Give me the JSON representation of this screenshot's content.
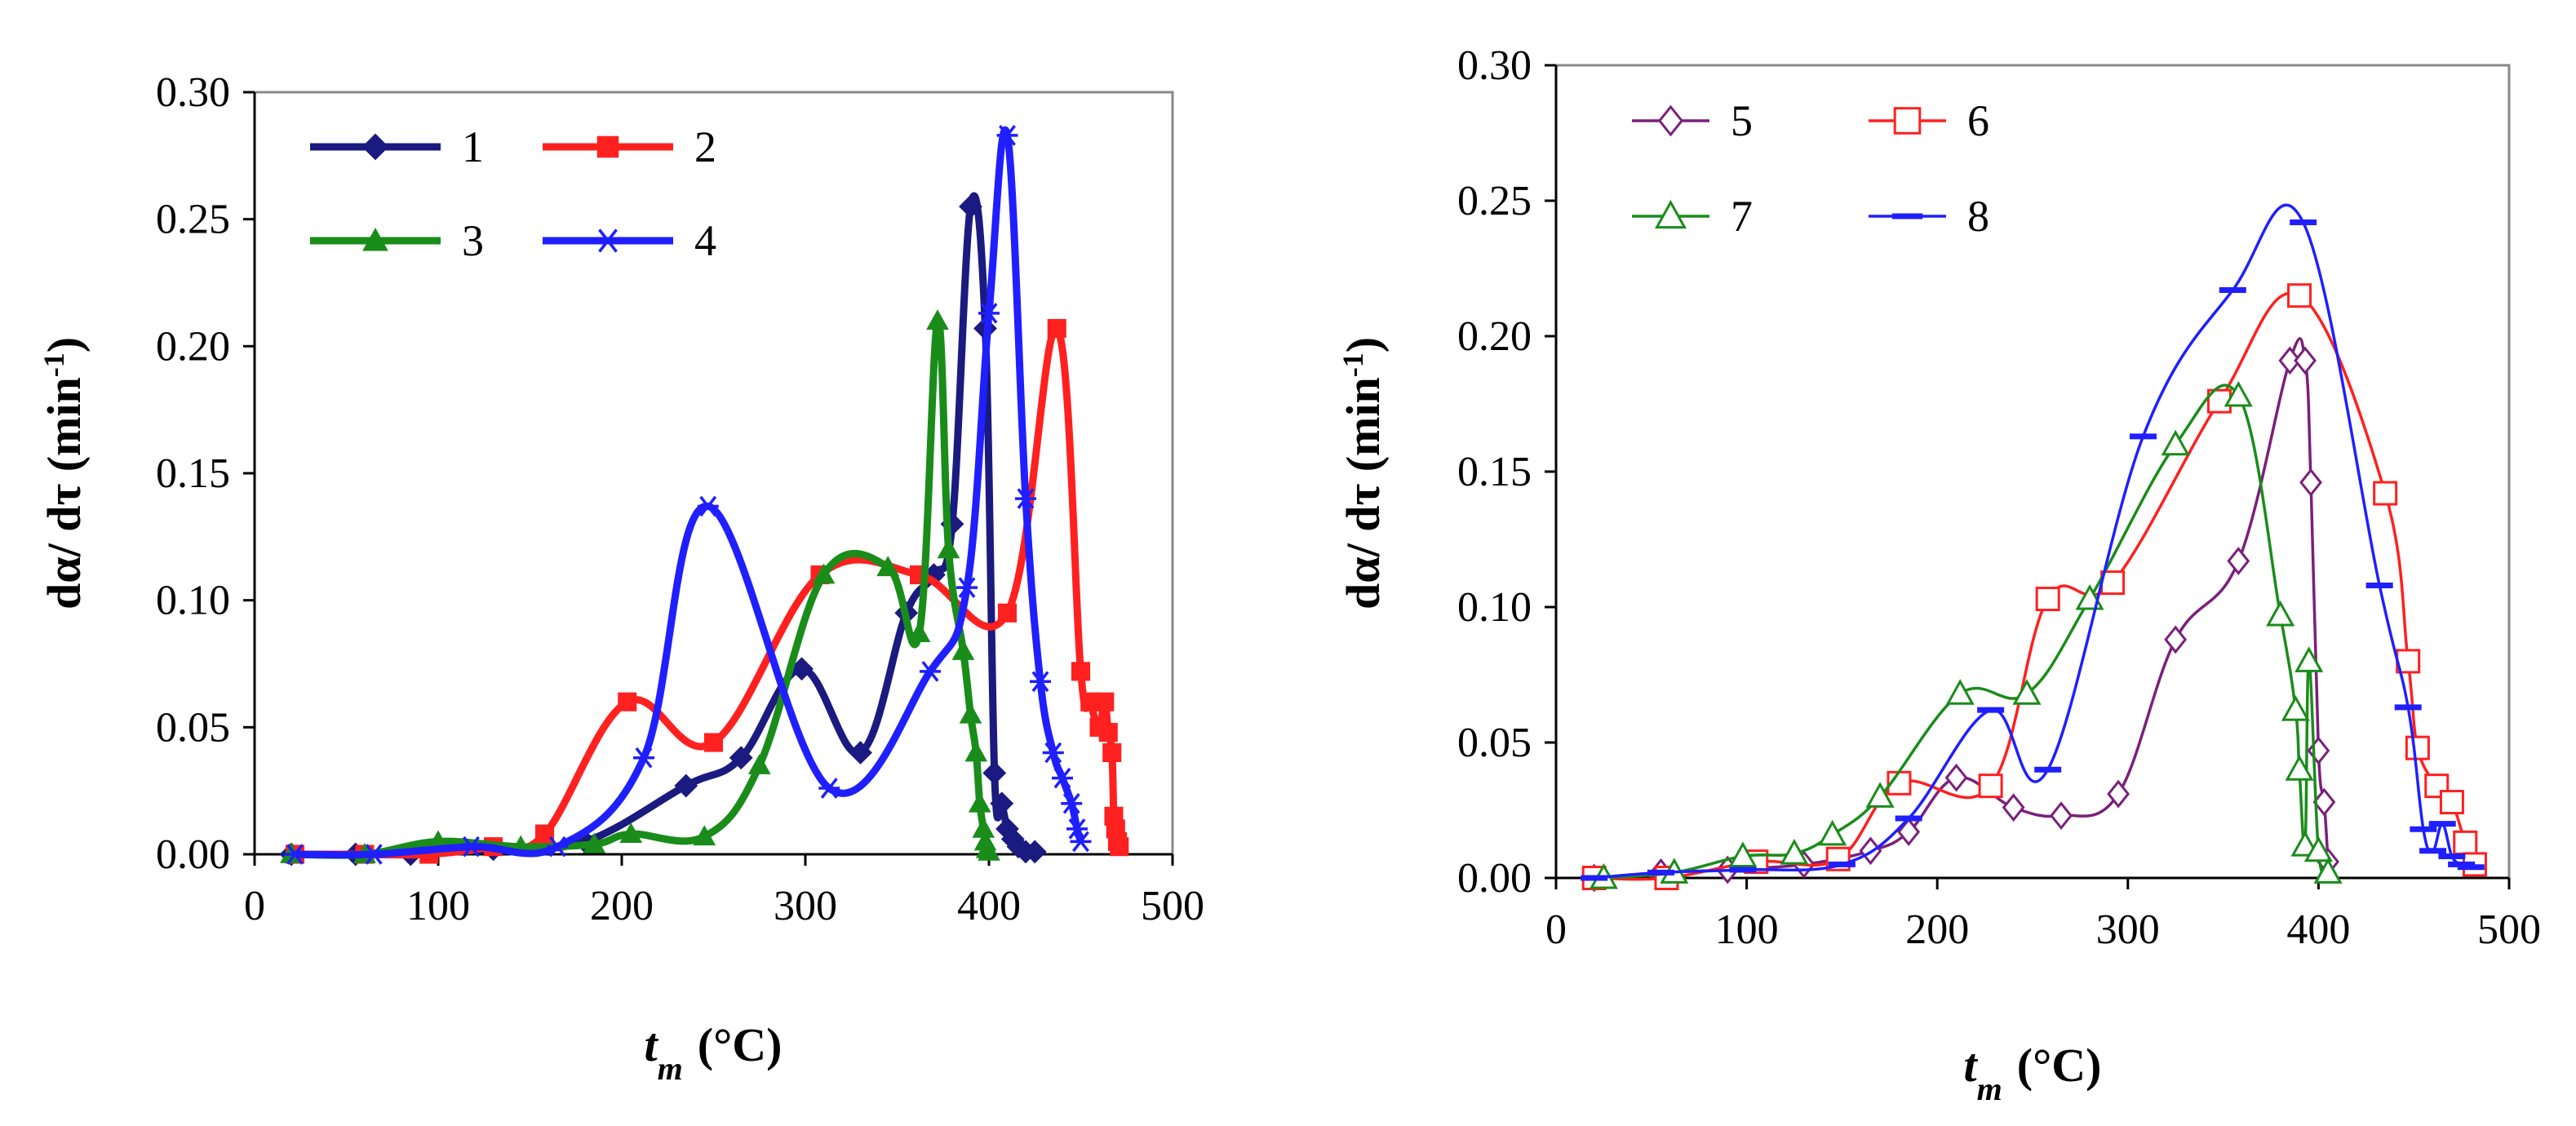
{
  "chart_data": [
    {
      "type": "line",
      "xlabel_main": "t",
      "xlabel_sub": "m",
      "xlabel_unit": "(°C)",
      "ylabel": "dα/ dτ (min",
      "ylabel_sup": "-1",
      "ylabel_close": ")",
      "xlim": [
        0,
        500
      ],
      "ylim": [
        0,
        0.3
      ],
      "xticks": [
        "0",
        "100",
        "200",
        "300",
        "400",
        "500"
      ],
      "yticks": [
        "0.00",
        "0.05",
        "0.10",
        "0.15",
        "0.20",
        "0.25",
        "0.30"
      ],
      "series": [
        {
          "name": "1",
          "color": "#1a1a80",
          "marker": "diamond-filled",
          "x": [
            20,
            55,
            85,
            130,
            180,
            235,
            265,
            298,
            330,
            355,
            370,
            380,
            390,
            398,
            403,
            407,
            410,
            413,
            416,
            420,
            425
          ],
          "y": [
            0,
            0,
            0,
            0.002,
            0.005,
            0.027,
            0.038,
            0.073,
            0.04,
            0.095,
            0.11,
            0.13,
            0.255,
            0.207,
            0.032,
            0.02,
            0.01,
            0.006,
            0.003,
            0.001,
            0.001
          ]
        },
        {
          "name": "2",
          "color": "#ff2020",
          "marker": "square-filled",
          "x": [
            22,
            60,
            95,
            130,
            158,
            203,
            250,
            308,
            362,
            410,
            437,
            450,
            455,
            460,
            463,
            465,
            467,
            468,
            469,
            470,
            471
          ],
          "y": [
            0,
            0,
            0,
            0.003,
            0.008,
            0.06,
            0.044,
            0.11,
            0.11,
            0.095,
            0.207,
            0.072,
            0.06,
            0.05,
            0.06,
            0.048,
            0.04,
            0.015,
            0.01,
            0.005,
            0.003
          ]
        },
        {
          "name": "3",
          "color": "#1a8c1a",
          "marker": "triangle-filled",
          "x": [
            20,
            60,
            100,
            145,
            185,
            205,
            245,
            275,
            310,
            345,
            362,
            372,
            378,
            386,
            390,
            393,
            395,
            397,
            398,
            399,
            400
          ],
          "y": [
            0,
            0,
            0.005,
            0.003,
            0.004,
            0.008,
            0.007,
            0.035,
            0.11,
            0.113,
            0.087,
            0.21,
            0.12,
            0.08,
            0.055,
            0.04,
            0.02,
            0.01,
            0.005,
            0.002,
            0.001
          ]
        },
        {
          "name": "4",
          "color": "#1f1fff",
          "marker": "asterisk",
          "x": [
            22,
            65,
            118,
            165,
            212,
            247,
            313,
            368,
            388,
            400,
            410,
            420,
            428,
            435,
            440,
            445,
            448,
            450
          ],
          "y": [
            0,
            0,
            0.003,
            0.003,
            0.038,
            0.137,
            0.026,
            0.072,
            0.105,
            0.213,
            0.283,
            0.14,
            0.068,
            0.04,
            0.03,
            0.02,
            0.01,
            0.005
          ]
        }
      ],
      "legend_position": "top-left"
    },
    {
      "type": "line",
      "xlabel_main": "t",
      "xlabel_sub": "m",
      "xlabel_unit": "(°C)",
      "ylabel": "dα/ dτ (min",
      "ylabel_sup": "-1",
      "ylabel_close": ")",
      "xlim": [
        0,
        500
      ],
      "ylim": [
        0,
        0.3
      ],
      "xticks": [
        "0",
        "100",
        "200",
        "300",
        "400",
        "500"
      ],
      "yticks": [
        "0.00",
        "0.05",
        "0.10",
        "0.15",
        "0.20",
        "0.25",
        "0.30"
      ],
      "series": [
        {
          "name": "5",
          "color": "#7b1f7b",
          "marker": "diamond-open",
          "x": [
            20,
            55,
            90,
            130,
            165,
            185,
            210,
            240,
            265,
            295,
            325,
            358,
            385,
            393,
            396,
            400,
            403,
            405
          ],
          "y": [
            0,
            0.002,
            0.003,
            0.005,
            0.01,
            0.017,
            0.037,
            0.026,
            0.023,
            0.031,
            0.088,
            0.117,
            0.191,
            0.191,
            0.146,
            0.047,
            0.028,
            0.006
          ]
        },
        {
          "name": "6",
          "color": "#ff2020",
          "marker": "square-open",
          "x": [
            20,
            58,
            105,
            148,
            180,
            228,
            258,
            292,
            348,
            390,
            435,
            447,
            452,
            462,
            470,
            477,
            482
          ],
          "y": [
            0,
            0,
            0.006,
            0.007,
            0.035,
            0.034,
            0.103,
            0.109,
            0.176,
            0.215,
            0.142,
            0.08,
            0.048,
            0.034,
            0.028,
            0.013,
            0.005
          ]
        },
        {
          "name": "7",
          "color": "#1a8c1a",
          "marker": "triangle-open",
          "x": [
            25,
            62,
            98,
            125,
            145,
            170,
            212,
            247,
            280,
            325,
            358,
            380,
            388,
            390,
            393,
            395,
            400,
            405
          ],
          "y": [
            0,
            0.002,
            0.008,
            0.009,
            0.016,
            0.03,
            0.068,
            0.068,
            0.103,
            0.16,
            0.178,
            0.097,
            0.062,
            0.04,
            0.012,
            0.08,
            0.01,
            0.002
          ]
        },
        {
          "name": "8",
          "color": "#1f1fff",
          "marker": "dash",
          "x": [
            20,
            55,
            98,
            150,
            185,
            228,
            258,
            308,
            355,
            392,
            432,
            447,
            455,
            460,
            465,
            470,
            475,
            480
          ],
          "y": [
            0,
            0.002,
            0.003,
            0.005,
            0.022,
            0.062,
            0.04,
            0.163,
            0.217,
            0.242,
            0.108,
            0.063,
            0.018,
            0.01,
            0.02,
            0.008,
            0.005,
            0.004
          ]
        }
      ],
      "legend_position": "top-left"
    }
  ]
}
